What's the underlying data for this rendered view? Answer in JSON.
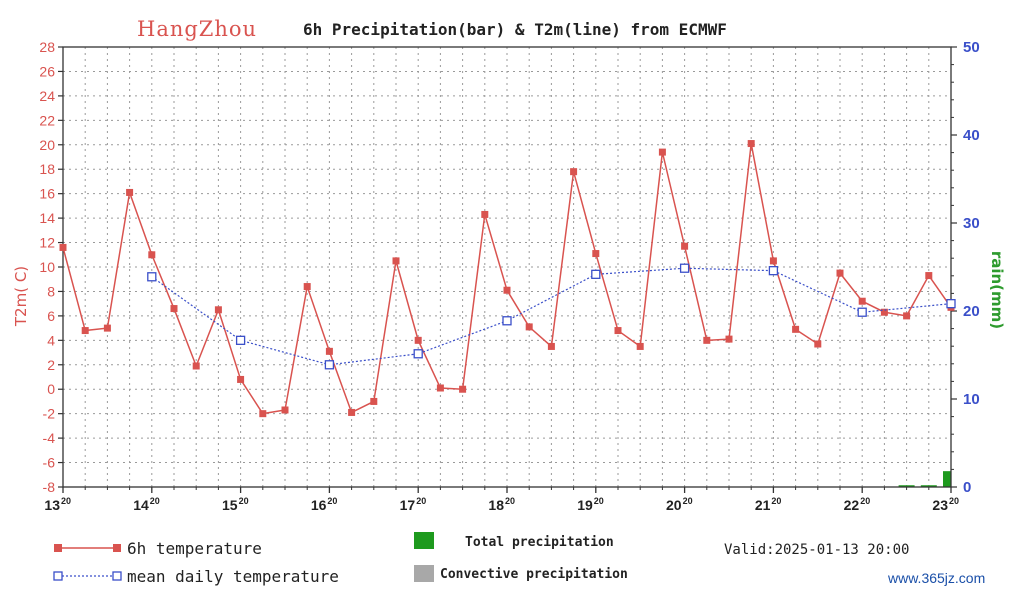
{
  "title": {
    "city": "HangZhou",
    "text": "6h Precipitation(bar) & T2m(line) from ECMWF"
  },
  "chart_data": {
    "type": "line",
    "title": "HangZhou 6h Precipitation(bar) & T2m(line) from ECMWF",
    "x_tick_labels": [
      {
        "day": "13",
        "hour": "20"
      },
      {
        "day": "14",
        "hour": "20"
      },
      {
        "day": "15",
        "hour": "20"
      },
      {
        "day": "16",
        "hour": "20"
      },
      {
        "day": "17",
        "hour": "20"
      },
      {
        "day": "18",
        "hour": "20"
      },
      {
        "day": "19",
        "hour": "20"
      },
      {
        "day": "20",
        "hour": "20"
      },
      {
        "day": "21",
        "hour": "20"
      },
      {
        "day": "22",
        "hour": "20"
      },
      {
        "day": "23",
        "hour": "20"
      }
    ],
    "ylabel_left": "T2m(  C)",
    "ylabel_right": "rain(mm)",
    "ylim_left": [
      -8,
      28
    ],
    "yticks_left": [
      -8,
      -6,
      -4,
      -2,
      0,
      2,
      4,
      6,
      8,
      10,
      12,
      14,
      16,
      18,
      20,
      22,
      24,
      26,
      28
    ],
    "ylim_right": [
      0,
      50
    ],
    "yticks_right": [
      0,
      10,
      20,
      30,
      40,
      50
    ],
    "xlim": [
      0,
      10
    ],
    "grid": true,
    "series": [
      {
        "name": "6h temperature",
        "color": "#d9534f",
        "axis": "left",
        "x": [
          0,
          0.25,
          0.5,
          0.75,
          1,
          1.25,
          1.5,
          1.75,
          2,
          2.25,
          2.5,
          2.75,
          3,
          3.25,
          3.5,
          3.75,
          4,
          4.25,
          4.5,
          4.75,
          5,
          5.25,
          5.5,
          5.75,
          6,
          6.25,
          6.5,
          6.75,
          7,
          7.25,
          7.5,
          7.75,
          8,
          8.25,
          8.5,
          8.75,
          9,
          9.25,
          9.5,
          9.75,
          10
        ],
        "values": [
          11.6,
          4.8,
          5.0,
          16.1,
          11.0,
          6.6,
          1.9,
          6.5,
          0.8,
          -2.0,
          -1.7,
          8.4,
          3.1,
          -1.9,
          -1.0,
          10.5,
          4.0,
          0.1,
          0.0,
          14.3,
          8.1,
          5.1,
          3.5,
          17.8,
          11.1,
          4.8,
          3.5,
          19.4,
          11.7,
          4.0,
          4.1,
          20.1,
          10.5,
          4.9,
          3.7,
          9.5,
          7.2,
          6.3,
          6.0,
          9.3,
          6.7
        ]
      },
      {
        "name": "mean daily temperature",
        "color": "#3a4fc9",
        "axis": "left",
        "x": [
          1,
          2,
          3,
          4,
          5,
          6,
          7,
          8,
          9,
          10
        ],
        "values": [
          9.2,
          4.0,
          2.0,
          2.9,
          5.6,
          9.4,
          9.9,
          9.7,
          6.3,
          7.0
        ]
      },
      {
        "name": "Total precipitation",
        "color": "#1e9a1e",
        "axis": "right",
        "type": "bar",
        "x": [
          9.5,
          9.75,
          10
        ],
        "values": [
          0.2,
          0.2,
          1.8
        ]
      }
    ],
    "legend": {
      "items": [
        {
          "label": "6h temperature",
          "style": "line-solid",
          "color": "#d9534f"
        },
        {
          "label": "mean daily temperature",
          "style": "line-dotted",
          "color": "#3a4fc9"
        },
        {
          "label": "Total precipitation",
          "style": "box",
          "color": "#1e9a1e"
        },
        {
          "label": "Convective precipitation",
          "style": "box",
          "color": "#a8a8a8"
        }
      ],
      "placement": "bottom"
    }
  },
  "valid_text": "Valid:2025-01-13 20:00",
  "watermark": "www.365jz.com"
}
